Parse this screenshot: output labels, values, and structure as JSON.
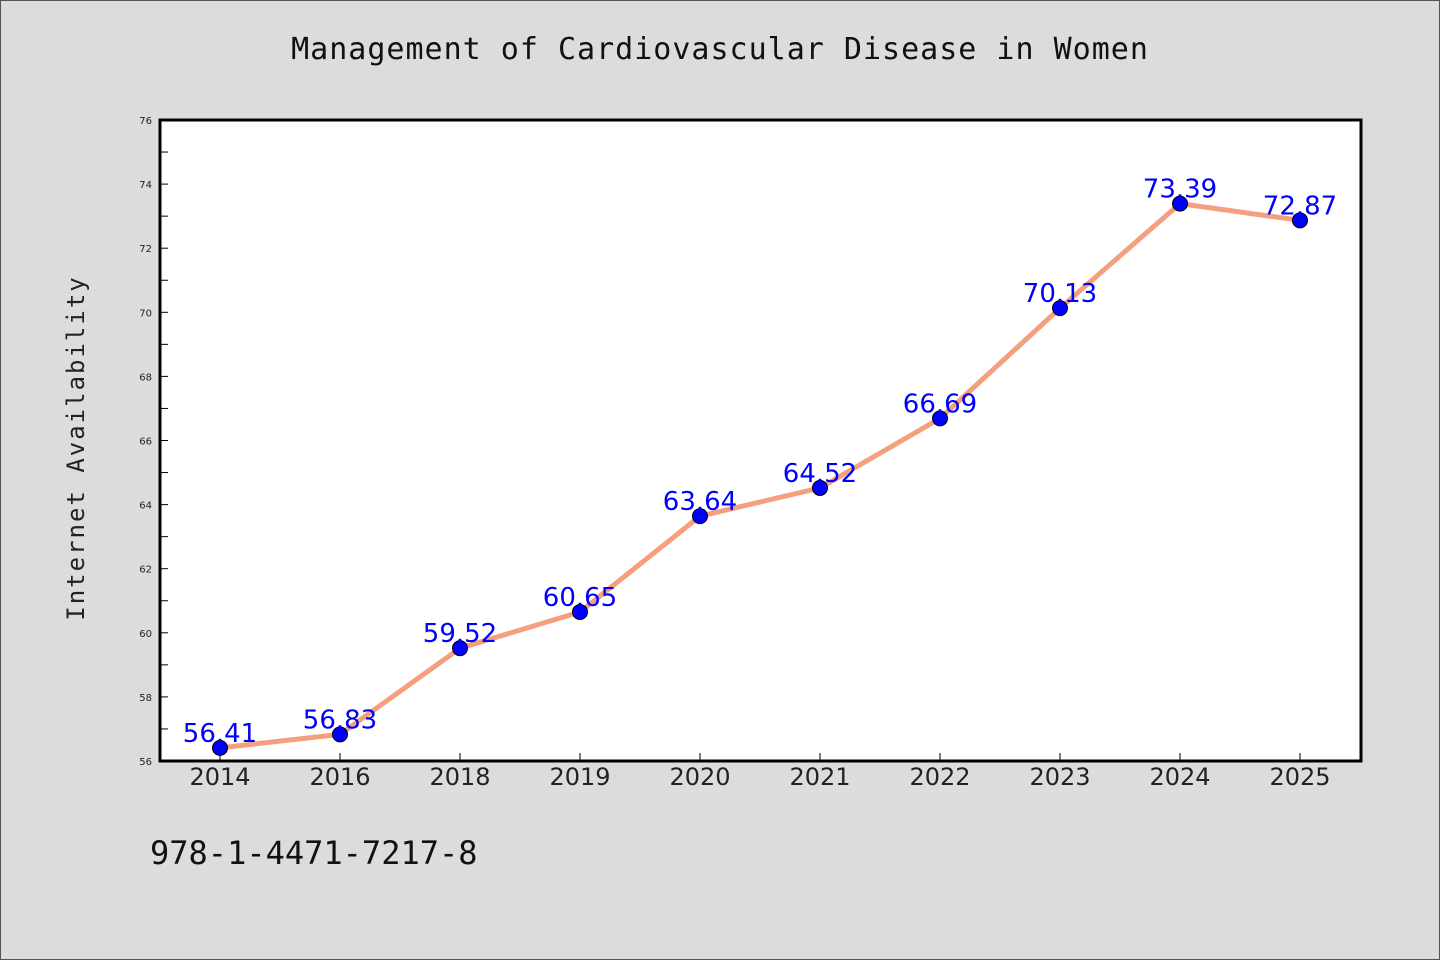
{
  "title": "Management of Cardiovascular Disease in Women",
  "ylabel": "Internet Availability",
  "footer_text": "978-1-4471-7217-8",
  "colors": {
    "background": "#dcdcdc",
    "plot_background": "#ffffff",
    "line": "#f4a07f",
    "marker": "#0000ff",
    "label": "#0000ff"
  },
  "chart_data": {
    "type": "line",
    "categories": [
      "2014",
      "2016",
      "2018",
      "2019",
      "2020",
      "2021",
      "2022",
      "2023",
      "2024",
      "2025"
    ],
    "series": [
      {
        "values": [
          56.41,
          56.83,
          59.52,
          60.65,
          63.64,
          64.52,
          66.69,
          70.13,
          73.39,
          72.87
        ]
      }
    ],
    "data_labels": [
      "56.41",
      "56.83",
      "59.52",
      "60.65",
      "63.64",
      "64.52",
      "66.69",
      "70.13",
      "73.39",
      "72.87"
    ],
    "ylim": [
      56,
      76
    ],
    "yticks": [
      "56",
      "58",
      "60",
      "62",
      "64",
      "66",
      "68",
      "70",
      "72",
      "74",
      "76"
    ],
    "grid": false,
    "legend": "none"
  }
}
